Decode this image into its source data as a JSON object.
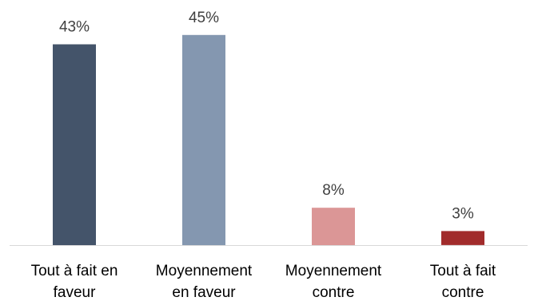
{
  "chart_data": {
    "type": "bar",
    "categories": [
      [
        "Tout à fait en",
        "faveur"
      ],
      [
        "Moyennement",
        "en faveur"
      ],
      [
        "Moyennement",
        "contre"
      ],
      [
        "Tout à fait",
        "contre"
      ]
    ],
    "values": [
      43,
      45,
      8,
      3
    ],
    "data_labels": [
      "43%",
      "45%",
      "8%",
      "3%"
    ],
    "colors": [
      "#44546A",
      "#8497B0",
      "#DB9696",
      "#A12B2B"
    ],
    "axis_color": "#D9D9D9",
    "ylim": [
      0,
      50
    ],
    "grid": false,
    "legend": "none"
  }
}
